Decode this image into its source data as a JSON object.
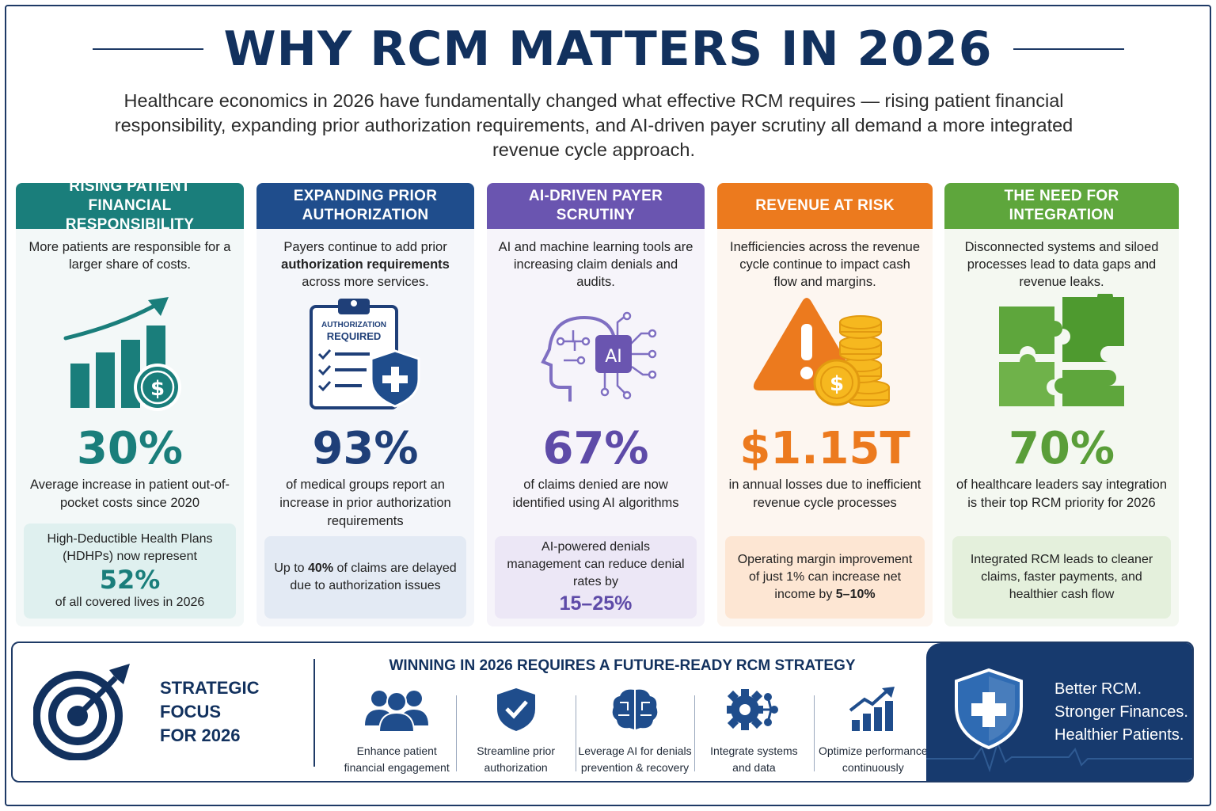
{
  "header": {
    "title": "WHY RCM MATTERS IN 2026",
    "intro": "Healthcare economics in 2026 have fundamentally changed what effective RCM requires — rising patient financial responsibility, expanding prior authorization requirements, and AI-driven payer scrutiny all demand a more integrated revenue cycle approach."
  },
  "colors": {
    "navy": "#12315e",
    "teal": "#1a7e7b",
    "blue": "#1f4d8c",
    "purple": "#6a55b0",
    "orange": "#ec7a1e",
    "green": "#5ea63c"
  },
  "cards": [
    {
      "title_line1": "RISING PATIENT",
      "title_line2": "FINANCIAL RESPONSIBILITY",
      "desc": "More patients are responsible for a larger share of costs.",
      "icon": "rising-bar-chart-dollar-icon",
      "stat": "30%",
      "stat_label": "Average increase in patient out-of-pocket costs since 2020",
      "box_line1": "High-Deductible Health Plans (HDHPs) now represent",
      "box_value": "52%",
      "box_line2": "of all covered lives in 2026"
    },
    {
      "title_line1": "EXPANDING PRIOR",
      "title_line2": "AUTHORIZATION",
      "desc_pre": "Payers continue to add prior",
      "desc_bold": "authorization requirements",
      "desc_post": "across more services.",
      "icon": "clipboard-shield-icon",
      "clipboard_label1": "AUTHORIZATION",
      "clipboard_label2": "REQUIRED",
      "stat": "93%",
      "stat_label": "of medical groups report an increase in prior authorization requirements",
      "box_pre": "Up to",
      "box_bold": "40%",
      "box_post": "of claims are delayed due to authorization issues"
    },
    {
      "title_line1": "AI-DRIVEN PAYER",
      "title_line2": "SCRUTINY",
      "desc": "AI and machine learning tools are increasing claim denials and audits.",
      "icon": "ai-head-circuit-icon",
      "chip_label": "AI",
      "stat": "67%",
      "stat_label": "of claims denied are now identified using AI algorithms",
      "box_line1": "AI-powered denials management can reduce denial rates by",
      "box_value": "15–25%"
    },
    {
      "title_line1": "REVENUE AT RISK",
      "desc": "Inefficiencies across the revenue cycle continue to impact cash flow and margins.",
      "icon": "warning-coins-icon",
      "stat": "$1.15T",
      "stat_label": "in annual losses due to inefficient revenue cycle processes",
      "box_pre": "Operating margin improvement of just 1% can increase net income by",
      "box_bold": "5–10%"
    },
    {
      "title_line1": "THE NEED FOR INTEGRATION",
      "desc": "Disconnected systems and siloed processes lead to data gaps and revenue leaks.",
      "icon": "puzzle-pieces-icon",
      "stat": "70%",
      "stat_label": "of healthcare leaders say integration is their top RCM priority for 2026",
      "box_line1": "Integrated RCM leads to cleaner claims, faster payments, and healthier cash flow"
    }
  ],
  "strategy": {
    "title_line1": "STRATEGIC FOCUS",
    "title_line2": "FOR 2026",
    "heading": "WINNING IN 2026 REQUIRES A FUTURE-READY RCM STRATEGY",
    "items": [
      {
        "icon": "people-group-icon",
        "line1": "Enhance patient",
        "line2": "financial engagement"
      },
      {
        "icon": "shield-check-icon",
        "line1": "Streamline prior",
        "line2": "authorization"
      },
      {
        "icon": "brain-circuit-icon",
        "line1": "Leverage AI for denials",
        "line2": "prevention & recovery"
      },
      {
        "icon": "gear-network-icon",
        "line1": "Integrate systems",
        "line2": "and data"
      },
      {
        "icon": "growth-chart-icon",
        "line1": "Optimize performance",
        "line2": "continuously"
      }
    ],
    "tagline": [
      "Better RCM.",
      "Stronger Finances.",
      "Healthier Patients."
    ]
  }
}
